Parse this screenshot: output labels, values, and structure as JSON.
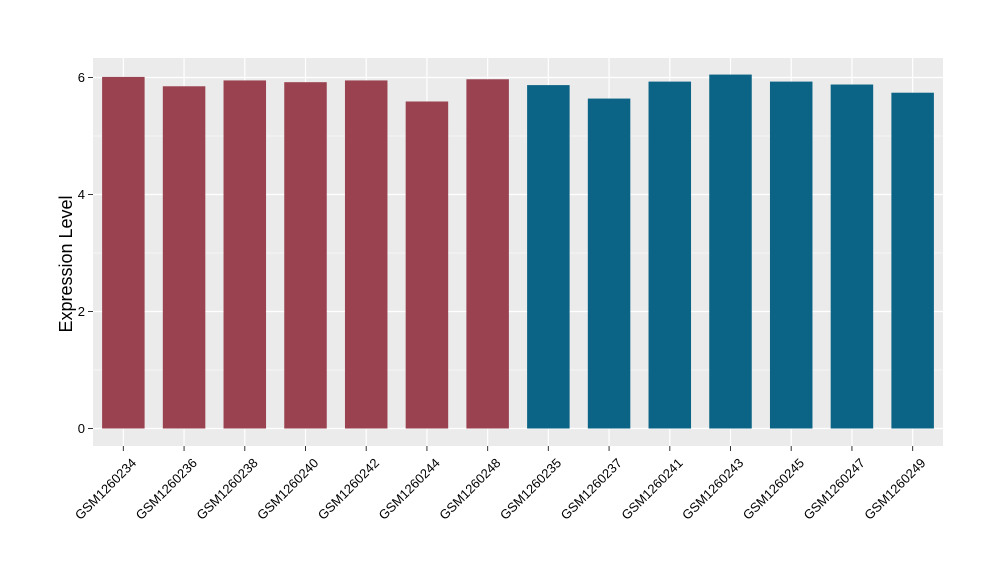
{
  "chart_data": {
    "type": "bar",
    "title": "",
    "xlabel": "",
    "ylabel": "Expression Level",
    "ylim": [
      0,
      6.3
    ],
    "yticks": [
      0,
      2,
      4,
      6
    ],
    "grid": true,
    "legend": "none",
    "categories": [
      "GSM1260234",
      "GSM1260236",
      "GSM1260238",
      "GSM1260240",
      "GSM1260242",
      "GSM1260244",
      "GSM1260248",
      "GSM1260235",
      "GSM1260237",
      "GSM1260241",
      "GSM1260243",
      "GSM1260245",
      "GSM1260247",
      "GSM1260249"
    ],
    "values": [
      6.01,
      5.85,
      5.95,
      5.92,
      5.95,
      5.59,
      5.97,
      5.87,
      5.64,
      5.93,
      6.05,
      5.93,
      5.88,
      5.74
    ],
    "groups": [
      "g1",
      "g1",
      "g1",
      "g1",
      "g1",
      "g1",
      "g1",
      "g2",
      "g2",
      "g2",
      "g2",
      "g2",
      "g2",
      "g2"
    ],
    "colors": {
      "g1": "#9a4250",
      "g2": "#0b6485"
    },
    "panel_background": "#ebebeb",
    "grid_color": "#ffffff"
  }
}
